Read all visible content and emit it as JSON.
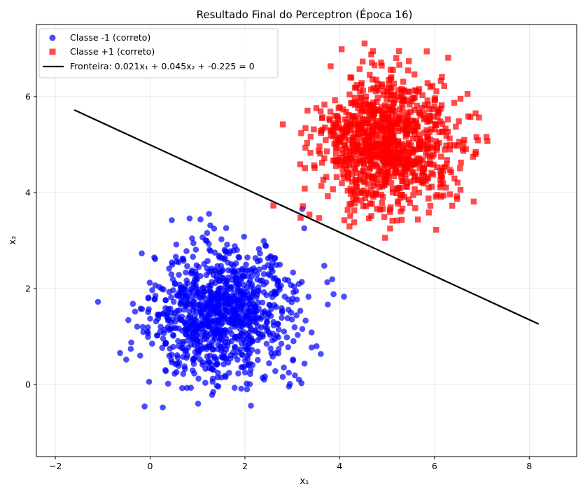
{
  "chart_data": {
    "type": "scatter",
    "title": "Resultado Final do Perceptron (Época 16)",
    "xlabel": "x₁",
    "ylabel": "x₂",
    "xlim": [
      -2.4,
      9.0
    ],
    "ylim": [
      -1.5,
      7.5
    ],
    "xticks": [
      -2,
      0,
      2,
      4,
      6,
      8
    ],
    "yticks": [
      0,
      2,
      4,
      6
    ],
    "grid": true,
    "legend_position": "top-left",
    "series": [
      {
        "name": "Classe -1 (correto)",
        "marker": "circle",
        "color": "#0000ff",
        "alpha": 0.7,
        "cluster": {
          "mean": [
            1.5,
            1.5
          ],
          "std": [
            0.75,
            0.7
          ],
          "count": 1000,
          "seed": 11
        }
      },
      {
        "name": "Classe +1 (correto)",
        "marker": "square",
        "color": "#ff0000",
        "alpha": 0.7,
        "cluster": {
          "mean": [
            5.0,
            5.0
          ],
          "std": [
            0.72,
            0.72
          ],
          "count": 1000,
          "seed": 29
        }
      }
    ],
    "boundary": {
      "name": "Fronteira: 0.021x₁ + 0.045x₂ + -0.225 = 0",
      "color": "#000000",
      "x": [
        -1.6,
        8.2
      ],
      "y": [
        5.72,
        1.26
      ]
    }
  }
}
